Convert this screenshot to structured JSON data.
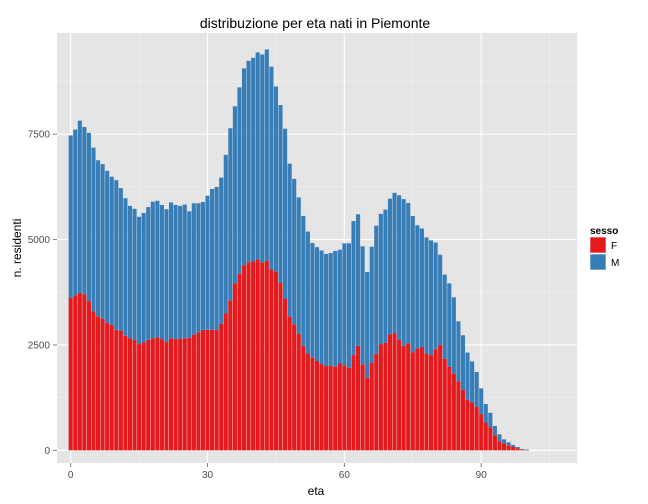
{
  "chart_data": {
    "type": "bar",
    "stacked": true,
    "title": "distribuzione per eta nati in Piemonte",
    "xlabel": "eta",
    "ylabel": "n. residenti",
    "xlim": [
      -3,
      111
    ],
    "ylim": [
      -300,
      9900
    ],
    "xticks": [
      0,
      30,
      60,
      90
    ],
    "yticks": [
      0,
      2500,
      5000,
      7500
    ],
    "grid": true,
    "legend": {
      "title": "sesso",
      "position": "right"
    },
    "x": [
      0,
      1,
      2,
      3,
      4,
      5,
      6,
      7,
      8,
      9,
      10,
      11,
      12,
      13,
      14,
      15,
      16,
      17,
      18,
      19,
      20,
      21,
      22,
      23,
      24,
      25,
      26,
      27,
      28,
      29,
      30,
      31,
      32,
      33,
      34,
      35,
      36,
      37,
      38,
      39,
      40,
      41,
      42,
      43,
      44,
      45,
      46,
      47,
      48,
      49,
      50,
      51,
      52,
      53,
      54,
      55,
      56,
      57,
      58,
      59,
      60,
      61,
      62,
      63,
      64,
      65,
      66,
      67,
      68,
      69,
      70,
      71,
      72,
      73,
      74,
      75,
      76,
      77,
      78,
      79,
      80,
      81,
      82,
      83,
      84,
      85,
      86,
      87,
      88,
      89,
      90,
      91,
      92,
      93,
      94,
      95,
      96,
      97,
      98,
      99,
      100,
      101,
      102,
      103,
      104,
      105
    ],
    "series": [
      {
        "name": "F",
        "color": "#e41a1c",
        "values": [
          3620,
          3680,
          3740,
          3700,
          3540,
          3300,
          3180,
          3120,
          3020,
          2980,
          2860,
          2840,
          2720,
          2660,
          2620,
          2520,
          2560,
          2620,
          2660,
          2680,
          2640,
          2580,
          2660,
          2640,
          2650,
          2660,
          2670,
          2740,
          2800,
          2860,
          2860,
          2860,
          2860,
          3000,
          3250,
          3560,
          3960,
          4200,
          4390,
          4460,
          4480,
          4530,
          4460,
          4500,
          4290,
          4240,
          3970,
          3590,
          3180,
          2990,
          2760,
          2480,
          2300,
          2200,
          2120,
          2050,
          2000,
          2010,
          1980,
          2060,
          2020,
          1960,
          2260,
          2480,
          2040,
          1720,
          2080,
          2290,
          2520,
          2550,
          2750,
          2780,
          2620,
          2480,
          2540,
          2330,
          2420,
          2450,
          2300,
          2260,
          2400,
          2500,
          2170,
          1980,
          1820,
          1640,
          1430,
          1200,
          1140,
          1030,
          860,
          660,
          550,
          360,
          220,
          160,
          120,
          80,
          50,
          20,
          10,
          0,
          0,
          0,
          0,
          0
        ]
      },
      {
        "name": "M",
        "color": "#377eb8",
        "values": [
          3850,
          3930,
          4080,
          3970,
          3990,
          3880,
          3700,
          3670,
          3610,
          3510,
          3550,
          3380,
          3260,
          3140,
          3110,
          3020,
          3070,
          3150,
          3240,
          3240,
          3180,
          3140,
          3220,
          3180,
          3150,
          3170,
          3000,
          3120,
          3060,
          3030,
          3180,
          3340,
          3390,
          3470,
          3760,
          4080,
          4200,
          4410,
          4670,
          4780,
          4830,
          4910,
          4930,
          5010,
          4810,
          4390,
          4220,
          4040,
          3620,
          3450,
          3240,
          3080,
          2890,
          2720,
          2700,
          2690,
          2660,
          2670,
          2750,
          2700,
          2890,
          2950,
          3180,
          3120,
          2800,
          2510,
          2750,
          3040,
          3090,
          3160,
          3220,
          3330,
          3430,
          3480,
          3330,
          3230,
          2920,
          2810,
          2750,
          2720,
          2530,
          2140,
          2000,
          1980,
          1810,
          1420,
          1300,
          1120,
          970,
          830,
          610,
          440,
          340,
          220,
          160,
          100,
          70,
          50,
          30,
          10,
          10,
          0,
          0,
          0,
          0,
          0
        ]
      }
    ]
  },
  "colors": {
    "panel_bg": "#e5e5e5",
    "grid_major": "#ffffff",
    "grid_minor": "#f2f2f2"
  }
}
